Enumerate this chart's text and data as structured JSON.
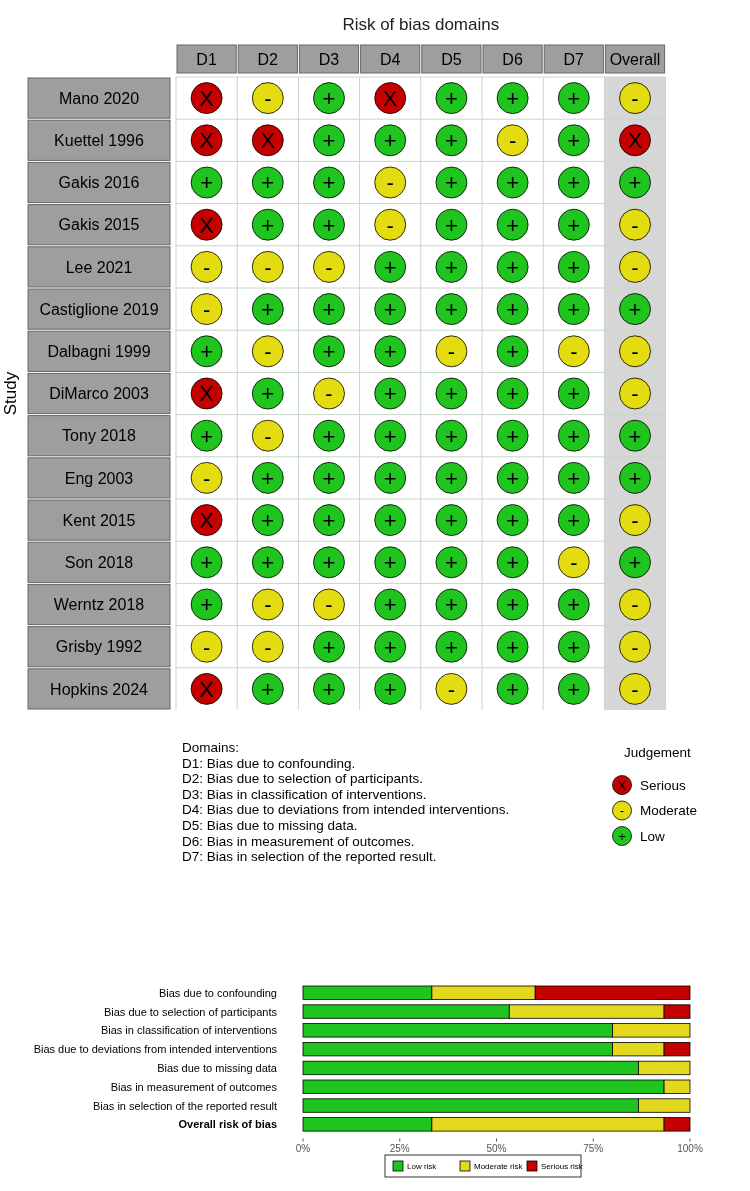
{
  "chart_data": [
    {
      "type": "heatmap",
      "title": "Risk of bias domains",
      "ylabel": "Study",
      "legend_title": "Judgement",
      "categories": [
        "D1",
        "D2",
        "D3",
        "D4",
        "D5",
        "D6",
        "D7",
        "Overall"
      ],
      "y_categories": [
        "Mano 2020",
        "Kuettel 1996",
        "Gakis 2016",
        "Gakis 2015",
        "Lee 2021",
        "Castiglione 2019",
        "Dalbagni 1999",
        "DiMarco 2003",
        "Tony 2018",
        "Eng 2003",
        "Kent 2015",
        "Son 2018",
        "Werntz 2018",
        "Grisby 1992",
        "Hopkins 2024"
      ],
      "colors": [
        "#c40000",
        "#e3dc10",
        "#1fc41f"
      ],
      "cells": [
        [
          "X",
          "-",
          "+",
          "X",
          "+",
          "+",
          "+",
          "-"
        ],
        [
          "X",
          "X",
          "+",
          "+",
          "+",
          "-",
          "+",
          "X"
        ],
        [
          "+",
          "+",
          "+",
          "-",
          "+",
          "+",
          "+",
          "+"
        ],
        [
          "X",
          "+",
          "+",
          "-",
          "+",
          "+",
          "+",
          "-"
        ],
        [
          "-",
          "-",
          "-",
          "+",
          "+",
          "+",
          "+",
          "-"
        ],
        [
          "-",
          "+",
          "+",
          "+",
          "+",
          "+",
          "+",
          "+"
        ],
        [
          "+",
          "-",
          "+",
          "+",
          "-",
          "+",
          "-",
          "-"
        ],
        [
          "X",
          "+",
          "-",
          "+",
          "+",
          "+",
          "+",
          "-"
        ],
        [
          "+",
          "-",
          "+",
          "+",
          "+",
          "+",
          "+",
          "+"
        ],
        [
          "-",
          "+",
          "+",
          "+",
          "+",
          "+",
          "+",
          "+"
        ],
        [
          "X",
          "+",
          "+",
          "+",
          "+",
          "+",
          "+",
          "-"
        ],
        [
          "+",
          "+",
          "+",
          "+",
          "+",
          "+",
          "-",
          "+"
        ],
        [
          "+",
          "-",
          "-",
          "+",
          "+",
          "+",
          "+",
          "-"
        ],
        [
          "-",
          "-",
          "+",
          "+",
          "+",
          "+",
          "+",
          "-"
        ],
        [
          "X",
          "+",
          "+",
          "+",
          "-",
          "+",
          "+",
          "-"
        ]
      ],
      "annotations": [
        "Domains:",
        "D1: Bias due to confounding.",
        "D2: Bias due to selection of participants.",
        "D3: Bias in classification of interventions.",
        "D4: Bias due to deviations from intended interventions.",
        "D5: Bias due to missing data.",
        "D6: Bias in measurement of outcomes.",
        "D7: Bias in selection of the reported result.",
        "Serious",
        "Moderate",
        "Low"
      ]
    },
    {
      "type": "bar",
      "orientation": "horizontal",
      "stacked": true,
      "legend": "bottom",
      "categories": [
        "Bias due to confounding",
        "Bias due to selection of participants",
        "Bias in classification of interventions",
        "Bias due to deviations from intended interventions",
        "Bias due to missing data",
        "Bias in measurement of outcomes",
        "Bias in selection of the reported result",
        "Overall risk of bias"
      ],
      "series": [
        {
          "name": "Low risk",
          "color": "#1fc41f",
          "values": [
            33.3,
            53.3,
            80,
            80,
            86.7,
            93.3,
            86.7,
            33.3
          ]
        },
        {
          "name": "Moderate risk",
          "color": "#e3d81e",
          "values": [
            26.7,
            40,
            20,
            13.3,
            13.3,
            6.7,
            13.3,
            60
          ]
        },
        {
          "name": "Serious risk",
          "color": "#c40000",
          "values": [
            40,
            6.7,
            0,
            6.7,
            0,
            0,
            0,
            6.7
          ]
        }
      ],
      "xlim": [
        0,
        100
      ],
      "xticks": [
        {
          "value": 0,
          "label": "0%"
        },
        {
          "value": 25,
          "label": "25%"
        },
        {
          "value": 50,
          "label": "50%"
        },
        {
          "value": 75,
          "label": "75%"
        },
        {
          "value": 100,
          "label": "100%"
        }
      ]
    }
  ]
}
